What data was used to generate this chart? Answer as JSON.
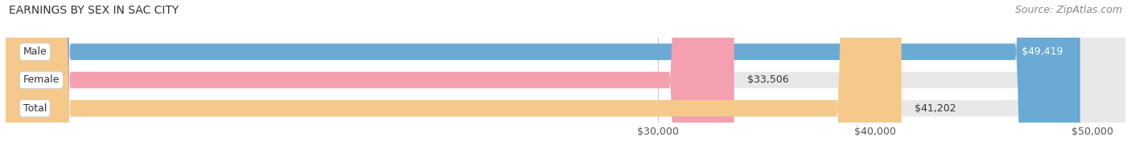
{
  "title": "EARNINGS BY SEX IN SAC CITY",
  "source": "Source: ZipAtlas.com",
  "categories": [
    "Male",
    "Female",
    "Total"
  ],
  "values": [
    49419,
    33506,
    41202
  ],
  "x_min": 0,
  "x_max": 51500,
  "x_ticks": [
    30000,
    40000,
    50000
  ],
  "x_tick_labels": [
    "$30,000",
    "$40,000",
    "$50,000"
  ],
  "bar_colors": [
    "#6aaad4",
    "#f4a0b0",
    "#f5c98a"
  ],
  "bar_bg_color": "#e8e8e8",
  "value_labels": [
    "$49,419",
    "$33,506",
    "$41,202"
  ],
  "label_inside": [
    true,
    false,
    false
  ],
  "label_inside_color": [
    "white",
    "#333333",
    "#333333"
  ],
  "bar_height": 0.58,
  "title_fontsize": 10,
  "source_fontsize": 9,
  "label_fontsize": 9,
  "tick_fontsize": 9,
  "cat_fontsize": 9,
  "fig_width": 14.06,
  "fig_height": 1.96,
  "background_color": "#ffffff",
  "rounding_size": 3000
}
